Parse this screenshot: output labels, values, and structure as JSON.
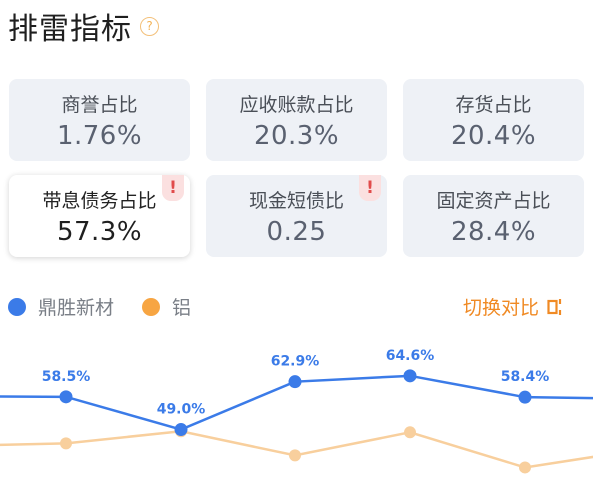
{
  "header": {
    "title": "排雷指标",
    "help_icon": "?"
  },
  "cards": [
    {
      "label": "商誉占比",
      "value": "1.76%",
      "warn": false,
      "selected": false
    },
    {
      "label": "应收账款占比",
      "value": "20.3%",
      "warn": false,
      "selected": false
    },
    {
      "label": "存货占比",
      "value": "20.4%",
      "warn": false,
      "selected": false
    },
    {
      "label": "带息债务占比",
      "value": "57.3%",
      "warn": true,
      "selected": true
    },
    {
      "label": "现金短债比",
      "value": "0.25",
      "warn": true,
      "selected": false
    },
    {
      "label": "固定资产占比",
      "value": "28.4%",
      "warn": false,
      "selected": false
    }
  ],
  "legend": [
    {
      "name": "鼎胜新材",
      "color": "#3b7be8"
    },
    {
      "name": "铝",
      "color": "#f7a542"
    }
  ],
  "switch_label": "切换对比",
  "colors": {
    "primary": "#3b7be8",
    "secondary": "#f8cf9d",
    "accent": "#f08a24",
    "warn": "#e14b4b"
  },
  "chart_data": {
    "type": "line",
    "series": [
      {
        "name": "鼎胜新材",
        "values": [
          58.6,
          58.5,
          49.0,
          62.9,
          64.6,
          58.4,
          58.1
        ],
        "labels": [
          "",
          "58.5%",
          "49.0%",
          "62.9%",
          "64.6%",
          "58.4%",
          ""
        ]
      },
      {
        "name": "铝",
        "values": [
          44.5,
          45.0,
          48.5,
          41.5,
          48.2,
          38.0,
          41.5
        ]
      }
    ],
    "ylim": [
      30,
      75
    ]
  }
}
